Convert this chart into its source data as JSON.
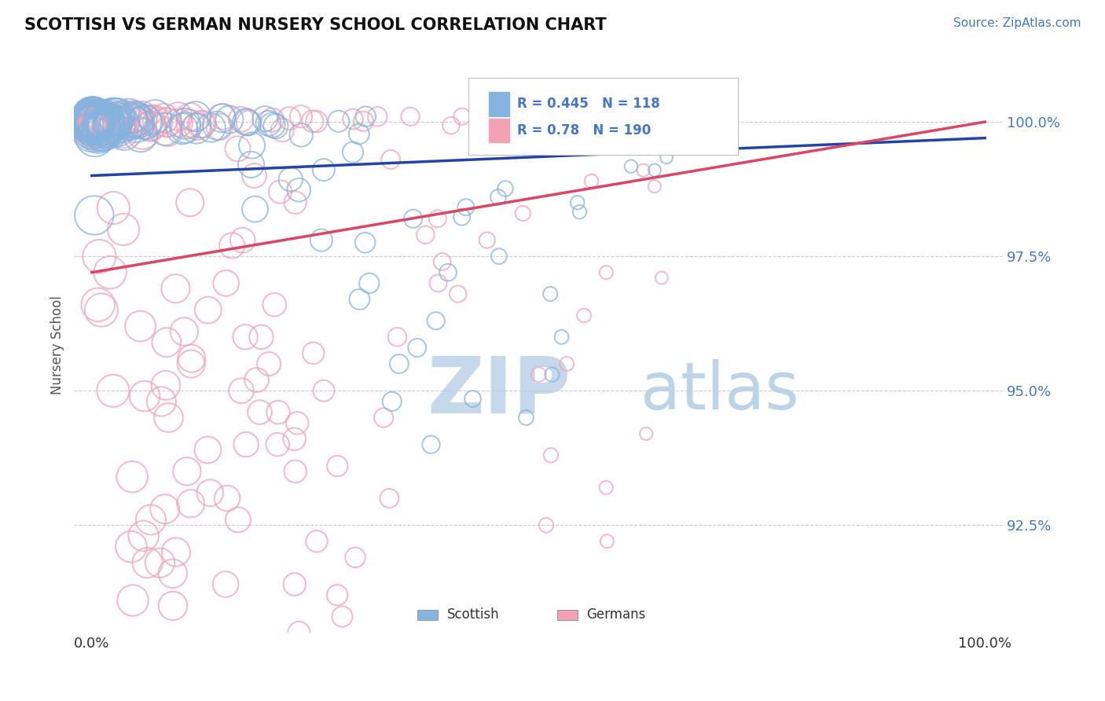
{
  "title": "SCOTTISH VS GERMAN NURSERY SCHOOL CORRELATION CHART",
  "source_text": "Source: ZipAtlas.com",
  "ylabel": "Nursery School",
  "legend_blue_label": "Scottish",
  "legend_pink_label": "Germans",
  "R_blue": 0.445,
  "N_blue": 118,
  "R_pink": 0.78,
  "N_pink": 190,
  "blue_color": "#85b4e0",
  "pink_color": "#f4a0b5",
  "blue_line_color": "#2244aa",
  "pink_line_color": "#dd4466",
  "blue_text_color": "#4477cc",
  "watermark_zip_color": "#c5d8ec",
  "watermark_atlas_color": "#bcd4e8",
  "title_color": "#111111",
  "grid_color": "#cccccc",
  "ytick_label_color": "#4477cc",
  "background_color": "#ffffff",
  "xlim": [
    -0.02,
    1.02
  ],
  "ylim": [
    0.905,
    1.012
  ],
  "yticks": [
    0.925,
    0.95,
    0.975,
    1.0
  ],
  "ytick_labels": [
    "92.5%",
    "95.0%",
    "97.5%",
    "100.0%"
  ],
  "blue_line_y0": 0.99,
  "blue_line_y1": 0.997,
  "pink_line_y0": 0.972,
  "pink_line_y1": 1.0
}
